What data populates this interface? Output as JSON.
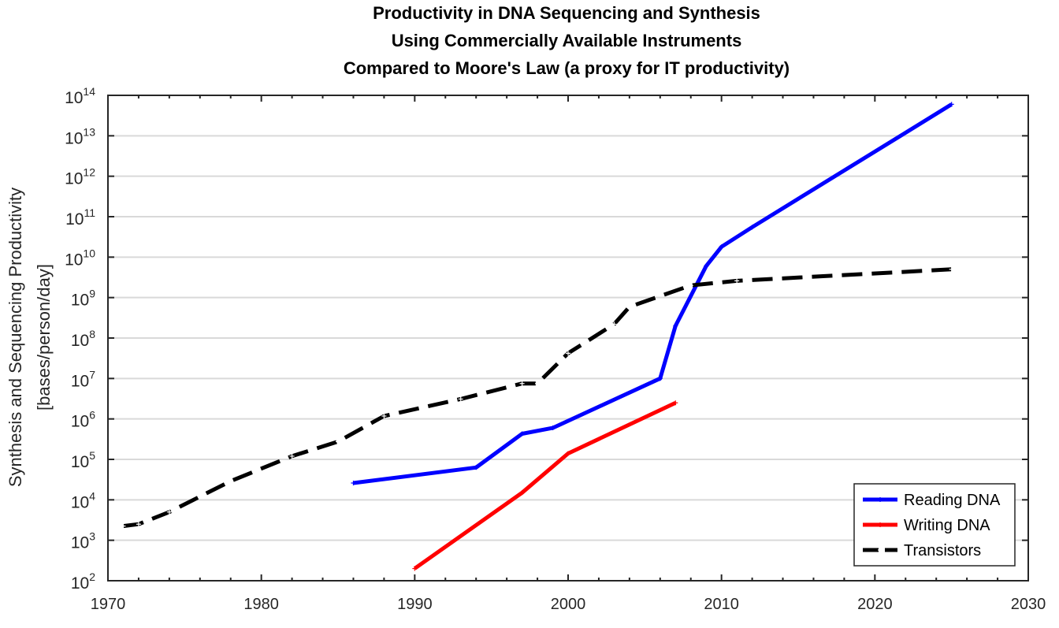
{
  "chart_data": {
    "type": "line",
    "title": [
      "Productivity in DNA Sequencing and Synthesis",
      "Using Commercially Available Instruments",
      "Compared to Moore's Law (a proxy for IT productivity)"
    ],
    "xlabel": "",
    "ylabel": [
      "Synthesis and Sequencing Productivity",
      "[bases/person/day]"
    ],
    "xlim": [
      1970,
      2030
    ],
    "ylim": [
      100,
      100000000000000
    ],
    "yscale": "log",
    "grid": "horizontal major gridlines",
    "x_ticks": [
      1970,
      1980,
      1990,
      2000,
      2010,
      2020,
      2030
    ],
    "x_tick_labels": [
      "1970",
      "1980",
      "1990",
      "2000",
      "2010",
      "2020",
      "2030"
    ],
    "y_tick_labels": [
      {
        "base": "10",
        "exp": "2"
      },
      {
        "base": "10",
        "exp": "3"
      },
      {
        "base": "10",
        "exp": "4"
      },
      {
        "base": "10",
        "exp": "5"
      },
      {
        "base": "10",
        "exp": "6"
      },
      {
        "base": "10",
        "exp": "7"
      },
      {
        "base": "10",
        "exp": "8"
      },
      {
        "base": "10",
        "exp": "9"
      },
      {
        "base": "10",
        "exp": "10"
      },
      {
        "base": "10",
        "exp": "11"
      },
      {
        "base": "10",
        "exp": "12"
      },
      {
        "base": "10",
        "exp": "13"
      },
      {
        "base": "10",
        "exp": "14"
      }
    ],
    "legend_position": "bottom-right",
    "series": [
      {
        "name": "Reading DNA",
        "color": "#0000ff",
        "style": "solid",
        "x": [
          1986,
          1994,
          1997,
          1999,
          2006,
          2007,
          2009,
          2010,
          2012,
          2025
        ],
        "y": [
          26000,
          63000,
          430000,
          600000,
          10000000,
          200000000,
          6000000000,
          18000000000,
          55000000000,
          60000000000000
        ]
      },
      {
        "name": "Writing DNA",
        "color": "#ff0000",
        "style": "solid",
        "x": [
          1990,
          1997,
          2000,
          2007
        ],
        "y": [
          200,
          15000,
          140000,
          2500000
        ]
      },
      {
        "name": "Transistors",
        "color": "#000000",
        "style": "dashed",
        "x": [
          1971,
          1972,
          1974,
          1978,
          1982,
          1985,
          1988,
          1993,
          1997,
          1998,
          2000,
          2003,
          2004,
          2008,
          2011,
          2025
        ],
        "y": [
          2250,
          2500,
          5000,
          29000,
          120000,
          275000,
          1180000,
          3100000,
          7500000,
          7500000,
          42000000,
          220000000,
          590000000,
          2000000000,
          2600000000,
          5000000000
        ]
      }
    ]
  }
}
